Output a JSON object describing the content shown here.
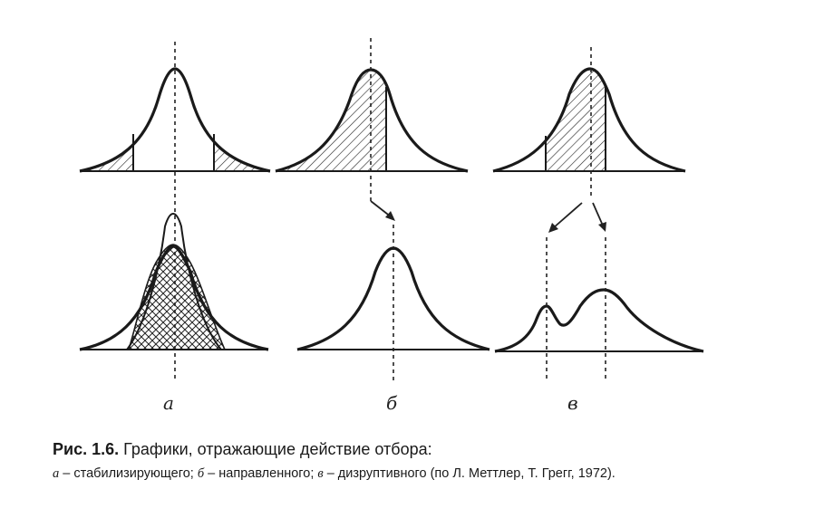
{
  "panels": {
    "a": {
      "label": "а"
    },
    "b": {
      "label": "б"
    },
    "c": {
      "label": "в"
    }
  },
  "caption": {
    "figure_number": "Рис. 1.6.",
    "title": "Графики, отражающие действие отбора:",
    "a_letter": "а",
    "a_text": "– стабилизирующего;",
    "b_letter": "б",
    "b_text": "– направленного;",
    "c_letter": "в",
    "c_text": "– дизруптивного (по Л. Меттлер, Т. Грегг, 1972)."
  }
}
